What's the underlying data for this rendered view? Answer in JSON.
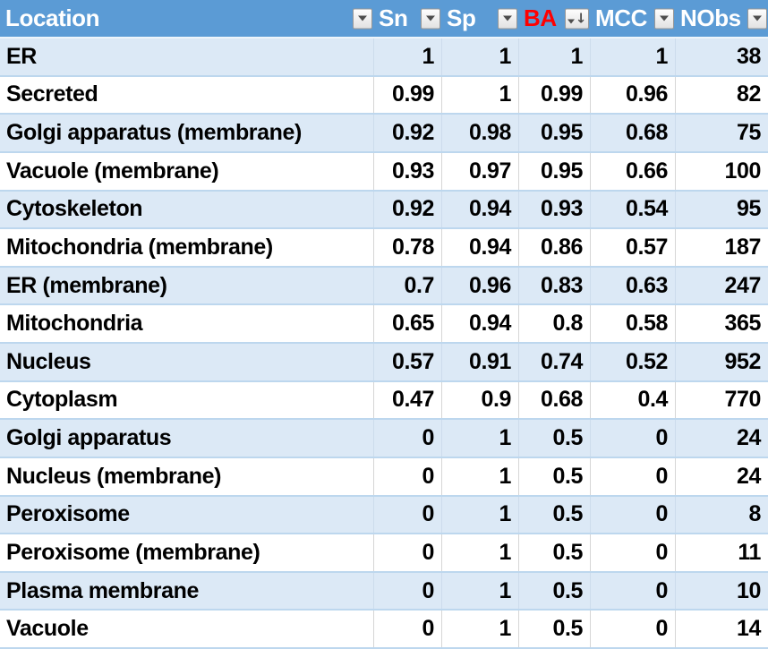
{
  "colors": {
    "header_bg": "#5B9BD5",
    "header_text": "#FFFFFF",
    "ba_header_text": "#FF0000",
    "band_row_bg": "#DCE9F6",
    "plain_row_bg": "#FFFFFF",
    "row_border": "#BDD7EE",
    "body_text": "#000000"
  },
  "table": {
    "columns": [
      {
        "id": "location",
        "label": "Location",
        "red": false,
        "sorted": false
      },
      {
        "id": "sn",
        "label": "Sn",
        "red": false,
        "sorted": false
      },
      {
        "id": "sp",
        "label": "Sp",
        "red": false,
        "sorted": false
      },
      {
        "id": "ba",
        "label": "BA",
        "red": true,
        "sorted": true
      },
      {
        "id": "mcc",
        "label": "MCC",
        "red": false,
        "sorted": false
      },
      {
        "id": "nobs",
        "label": "NObs",
        "red": false,
        "sorted": false
      }
    ],
    "sort": {
      "column": "BA",
      "direction": "descending"
    },
    "rows": [
      {
        "cells": [
          "ER",
          "1",
          "1",
          "1",
          "1",
          "38"
        ]
      },
      {
        "cells": [
          "Secreted",
          "0.99",
          "1",
          "0.99",
          "0.96",
          "82"
        ]
      },
      {
        "cells": [
          "Golgi apparatus (membrane)",
          "0.92",
          "0.98",
          "0.95",
          "0.68",
          "75"
        ]
      },
      {
        "cells": [
          "Vacuole (membrane)",
          "0.93",
          "0.97",
          "0.95",
          "0.66",
          "100"
        ]
      },
      {
        "cells": [
          "Cytoskeleton",
          "0.92",
          "0.94",
          "0.93",
          "0.54",
          "95"
        ]
      },
      {
        "cells": [
          "Mitochondria (membrane)",
          "0.78",
          "0.94",
          "0.86",
          "0.57",
          "187"
        ]
      },
      {
        "cells": [
          "ER (membrane)",
          "0.7",
          "0.96",
          "0.83",
          "0.63",
          "247"
        ]
      },
      {
        "cells": [
          "Mitochondria",
          "0.65",
          "0.94",
          "0.8",
          "0.58",
          "365"
        ]
      },
      {
        "cells": [
          "Nucleus",
          "0.57",
          "0.91",
          "0.74",
          "0.52",
          "952"
        ]
      },
      {
        "cells": [
          "Cytoplasm",
          "0.47",
          "0.9",
          "0.68",
          "0.4",
          "770"
        ]
      },
      {
        "cells": [
          "Golgi apparatus",
          "0",
          "1",
          "0.5",
          "0",
          "24"
        ]
      },
      {
        "cells": [
          "Nucleus (membrane)",
          "0",
          "1",
          "0.5",
          "0",
          "24"
        ]
      },
      {
        "cells": [
          "Peroxisome",
          "0",
          "1",
          "0.5",
          "0",
          "8"
        ]
      },
      {
        "cells": [
          "Peroxisome (membrane)",
          "0",
          "1",
          "0.5",
          "0",
          "11"
        ]
      },
      {
        "cells": [
          "Plasma membrane",
          "0",
          "1",
          "0.5",
          "0",
          "10"
        ]
      },
      {
        "cells": [
          "Vacuole",
          "0",
          "1",
          "0.5",
          "0",
          "14"
        ]
      }
    ]
  }
}
